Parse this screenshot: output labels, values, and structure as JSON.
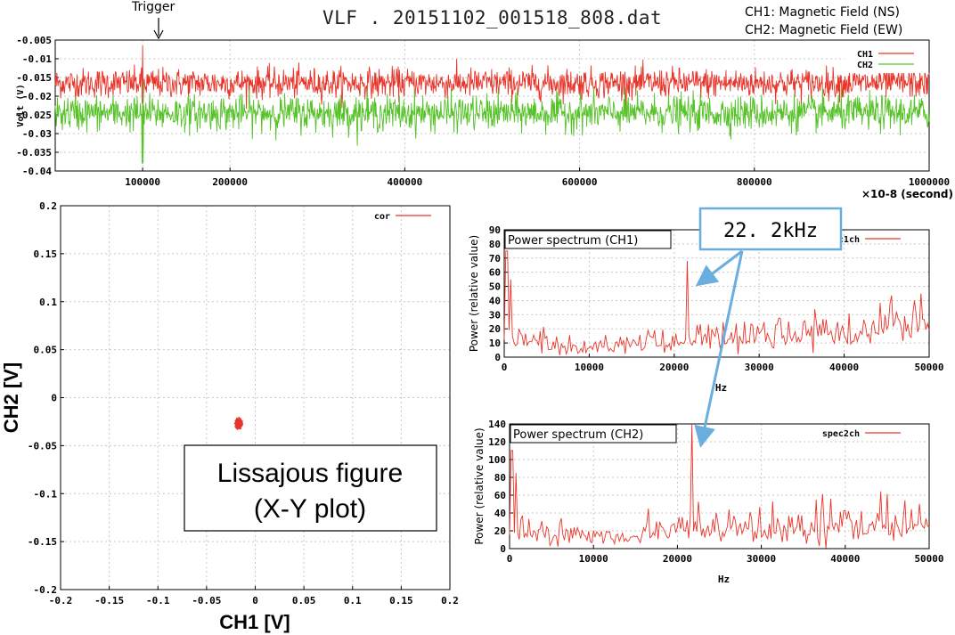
{
  "header": {
    "title": "VLF . 20151102_001518_808.dat",
    "ch1_desc": "CH1: Magnetic Field (NS)",
    "ch2_desc": "CH2: Magnetic Field (EW)",
    "trigger": "Trigger"
  },
  "annotations": {
    "lissajous_line1": "Lissajous figure",
    "lissajous_line2": "(X-Y plot)",
    "peak_label": "22. 2kHz"
  },
  "colors": {
    "ch1": "#e8352a",
    "ch2": "#55c227",
    "arrow": "#6aaee0"
  },
  "chart_data": [
    {
      "type": "line",
      "name": "waveform",
      "ylabel": "Volt (V)",
      "xunit": "×10-8 (second)",
      "xlim": [
        0,
        1000000
      ],
      "ylim": [
        -0.04,
        -0.005
      ],
      "xticks": [
        100000,
        200000,
        400000,
        600000,
        800000,
        1000000
      ],
      "yticks": [
        -0.005,
        -0.01,
        -0.015,
        -0.02,
        -0.025,
        -0.03,
        -0.035,
        -0.04
      ],
      "xtick_labels": [
        "100000",
        "200000",
        "400000",
        "600000",
        "800000",
        "1000000"
      ],
      "ytick_labels": [
        "-0.005",
        "-0.01",
        "-0.015",
        "-0.02",
        "-0.025",
        "-0.03",
        "-0.035",
        "-0.04"
      ],
      "series": [
        {
          "name": "CH1",
          "mean": -0.0165,
          "spread": 0.0022,
          "spike_x": 100000,
          "spike_max": -0.0065,
          "spike_min": -0.022
        },
        {
          "name": "CH2",
          "mean": -0.0245,
          "spread": 0.0026,
          "spike_x": 100000,
          "spike_max": -0.016,
          "spike_min": -0.038
        }
      ],
      "legend": "top-right"
    },
    {
      "type": "scatter",
      "name": "lissajous",
      "xlabel": "CH1 [V]",
      "ylabel": "CH2 [V]",
      "xlim": [
        -0.2,
        0.2
      ],
      "ylim": [
        -0.2,
        0.2
      ],
      "xticks": [
        -0.2,
        -0.15,
        -0.1,
        -0.05,
        0,
        0.05,
        0.1,
        0.15,
        0.2
      ],
      "yticks": [
        0.2,
        0.15,
        0.1,
        0.05,
        0,
        -0.05,
        -0.1,
        -0.15,
        -0.2
      ],
      "xtick_labels": [
        "-0.2",
        "-0.15",
        "-0.1",
        "-0.05",
        "0",
        "0.05",
        "0.1",
        "0.15",
        "0.2"
      ],
      "ytick_labels": [
        "0.2",
        "0.15",
        "0.1",
        "0.05",
        "0",
        "-0.05",
        "-0.1",
        "-0.15",
        "-0.2"
      ],
      "series": [
        {
          "name": "cor",
          "center": [
            -0.017,
            -0.027
          ],
          "spread": [
            0.004,
            0.006
          ]
        }
      ],
      "legend": "top-right"
    },
    {
      "type": "line",
      "name": "spec1",
      "title": "Power spectrum (CH1)",
      "xlabel": "Hz",
      "ylabel": "Power (relative value)",
      "xlim": [
        0,
        50000
      ],
      "ylim": [
        0,
        90
      ],
      "xticks": [
        0,
        10000,
        20000,
        30000,
        40000,
        50000
      ],
      "yticks": [
        0,
        10,
        20,
        30,
        40,
        50,
        60,
        70,
        80,
        90
      ],
      "xtick_labels": [
        "0",
        "10000",
        "20000",
        "30000",
        "40000",
        "50000"
      ],
      "ytick_labels": [
        "0",
        "10",
        "20",
        "30",
        "40",
        "50",
        "60",
        "70",
        "80",
        "90"
      ],
      "series": [
        {
          "name": "spec1ch",
          "peaks": [
            [
              300,
              75
            ],
            [
              700,
              55
            ],
            [
              21600,
              68
            ],
            [
              49000,
              45
            ]
          ]
        }
      ],
      "legend": "top-right"
    },
    {
      "type": "line",
      "name": "spec2",
      "title": "Power spectrum (CH2)",
      "xlabel": "Hz",
      "ylabel": "Power (relative value)",
      "xlim": [
        0,
        50000
      ],
      "ylim": [
        0,
        140
      ],
      "xticks": [
        0,
        10000,
        20000,
        30000,
        40000,
        50000
      ],
      "yticks": [
        0,
        20,
        40,
        60,
        80,
        100,
        120,
        140
      ],
      "xtick_labels": [
        "0",
        "10000",
        "20000",
        "30000",
        "40000",
        "50000"
      ],
      "ytick_labels": [
        "0",
        "20",
        "40",
        "60",
        "80",
        "100",
        "120",
        "140"
      ],
      "series": [
        {
          "name": "spec2ch",
          "peaks": [
            [
              300,
              110
            ],
            [
              800,
              85
            ],
            [
              21700,
              140
            ],
            [
              16500,
              45
            ]
          ]
        }
      ],
      "legend": "top-right"
    }
  ]
}
